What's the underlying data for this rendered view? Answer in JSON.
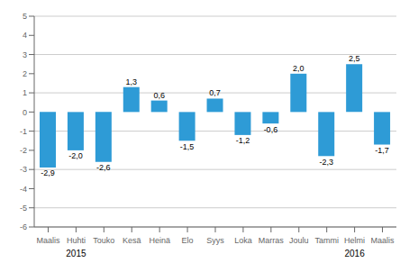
{
  "chart_data": {
    "type": "bar",
    "categories": [
      "Maalis",
      "Huhti",
      "Touko",
      "Kesä",
      "Heinä",
      "Elo",
      "Syys",
      "Loka",
      "Marras",
      "Joulu",
      "Tammi",
      "Helmi",
      "Maalis"
    ],
    "values": [
      -2.9,
      -2.0,
      -2.6,
      1.3,
      0.6,
      -1.5,
      0.7,
      -1.2,
      -0.6,
      2.0,
      -2.3,
      2.5,
      -1.7
    ],
    "value_labels": [
      "-2,9",
      "-2,0",
      "-2,6",
      "1,3",
      "0,6",
      "-1,5",
      "0,7",
      "-1,2",
      "-0,6",
      "2,0",
      "-2,3",
      "2,5",
      "-1,7"
    ],
    "data_labels": true,
    "color": "#2E9BD6",
    "ylim": [
      -6,
      5
    ],
    "yticks": [
      -6,
      -5,
      -4,
      -3,
      -2,
      -1,
      0,
      1,
      2,
      3,
      4,
      5
    ],
    "grid": true,
    "annotations": [
      {
        "text": "2015",
        "category": "Huhti"
      },
      {
        "text": "2016",
        "category": "Helmi"
      }
    ]
  }
}
